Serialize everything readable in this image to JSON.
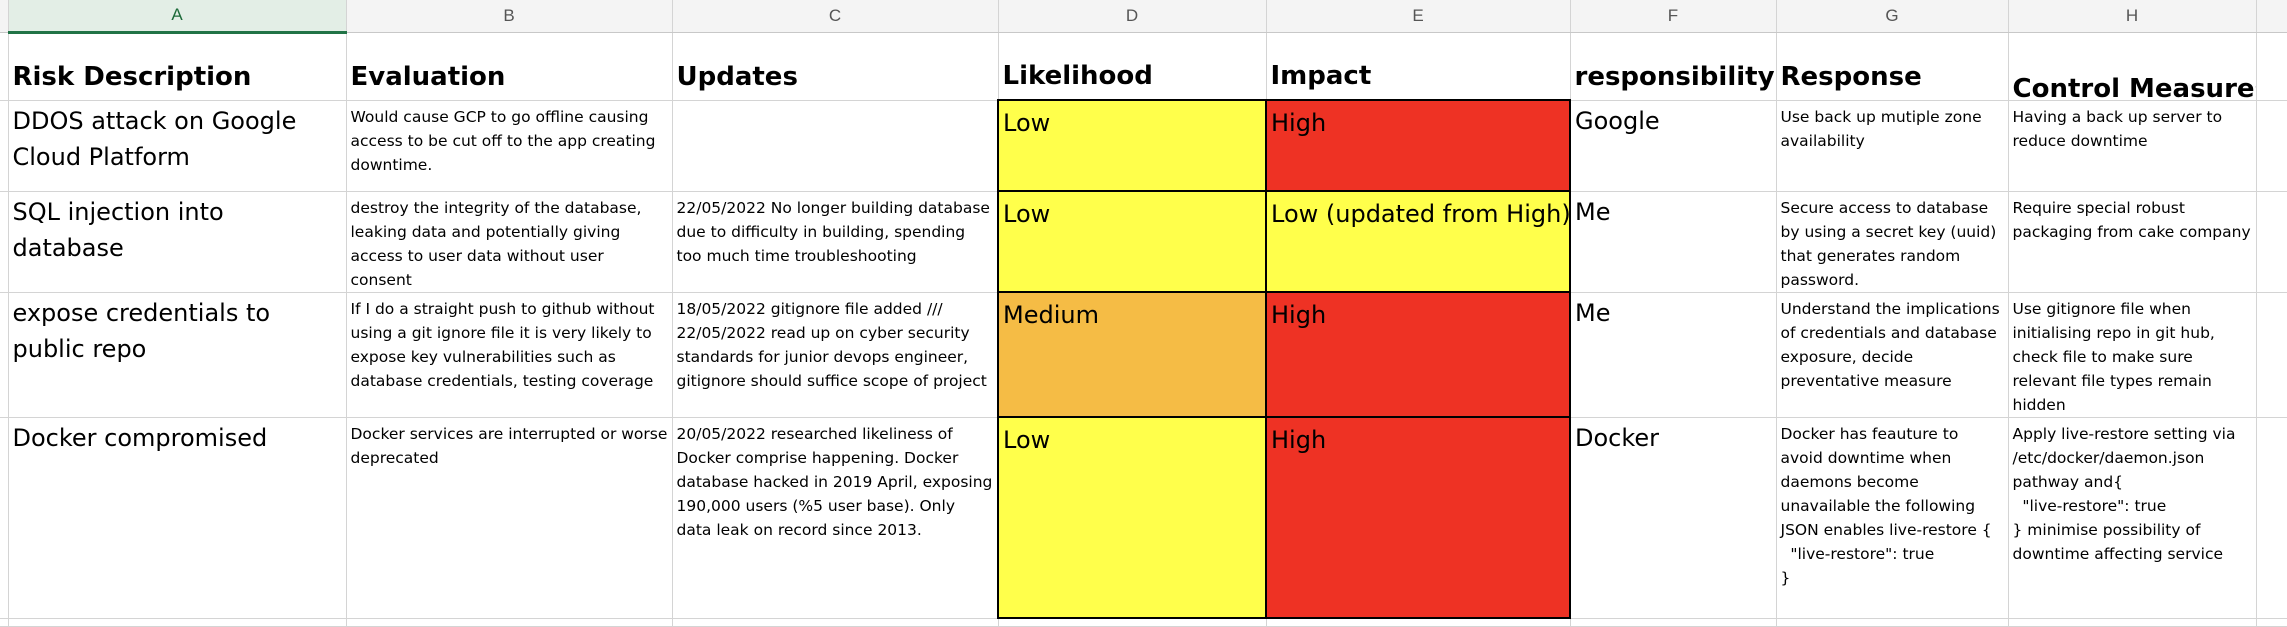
{
  "colors": {
    "low": "#ffff4b",
    "medium": "#f5bc45",
    "high": "#ee3224",
    "grid_line": "#d4d4d4",
    "selected_column": "#217346"
  },
  "columns": [
    "A",
    "B",
    "C",
    "D",
    "E",
    "F",
    "G",
    "H"
  ],
  "selected_column": "A",
  "headers": {
    "risk_description": "Risk Description",
    "evaluation": "Evaluation",
    "updates": "Updates",
    "likelihood": "Likelihood",
    "impact": "Impact",
    "responsibility": "responsibility",
    "response": "Response",
    "control_measures": "Control Measures"
  },
  "rows": [
    {
      "risk": "DDOS attack on Google Cloud Platform",
      "evaluation": "Would cause GCP to go offline causing access to be cut off to the app creating downtime.",
      "updates": "",
      "likelihood": "Low",
      "likelihood_level": "low",
      "impact": "High",
      "impact_level": "high",
      "responsibility": "Google",
      "response": "Use back up mutiple zone availability",
      "control": "Having a back up server to reduce downtime"
    },
    {
      "risk": "SQL injection into database",
      "evaluation": "destroy the integrity of the database, leaking data and potentially giving access to user data without user consent",
      "updates": "22/05/2022 No longer building database due to difficulty in building, spending too much time troubleshooting",
      "likelihood": "Low",
      "likelihood_level": "low",
      "impact": "Low (updated from High)",
      "impact_level": "low",
      "responsibility": "Me",
      "response": "Secure access to database by using a secret key (uuid) that generates random password.",
      "control": "Require special robust packaging from cake company"
    },
    {
      "risk": "expose credentials to public repo",
      "evaluation": "If I do a straight push to github without using a git ignore file it is very likely to expose key vulnerabilities such as database credentials, testing coverage",
      "updates": "18/05/2022 gitignore file added /// 22/05/2022 read up on cyber security standards for junior devops engineer, gitignore should suffice scope of project",
      "likelihood": "Medium",
      "likelihood_level": "medium",
      "impact": "High",
      "impact_level": "high",
      "responsibility": "Me",
      "response": "Understand the implications of credentials and database exposure, decide preventative measure",
      "control": "Use gitignore file when initialising repo in git hub, check file to make sure relevant file types remain hidden"
    },
    {
      "risk": "Docker compromised",
      "evaluation": "Docker services are interrupted or worse deprecated",
      "updates": "20/05/2022 researched likeliness of Docker comprise happening. Docker database hacked in 2019 April, exposing 190,000 users (%5 user base). Only data leak on record since 2013.",
      "likelihood": "Low",
      "likelihood_level": "low",
      "impact": "High",
      "impact_level": "high",
      "responsibility": "Docker",
      "response": "Docker has feauture to avoid downtime when daemons become unavailable the following JSON enables live-restore {\n  \"live-restore\": true\n}",
      "control": "Apply live-restore setting via /etc/docker/daemon.json pathway and{\n  \"live-restore\": true\n} minimise possibility of downtime affecting service"
    }
  ]
}
